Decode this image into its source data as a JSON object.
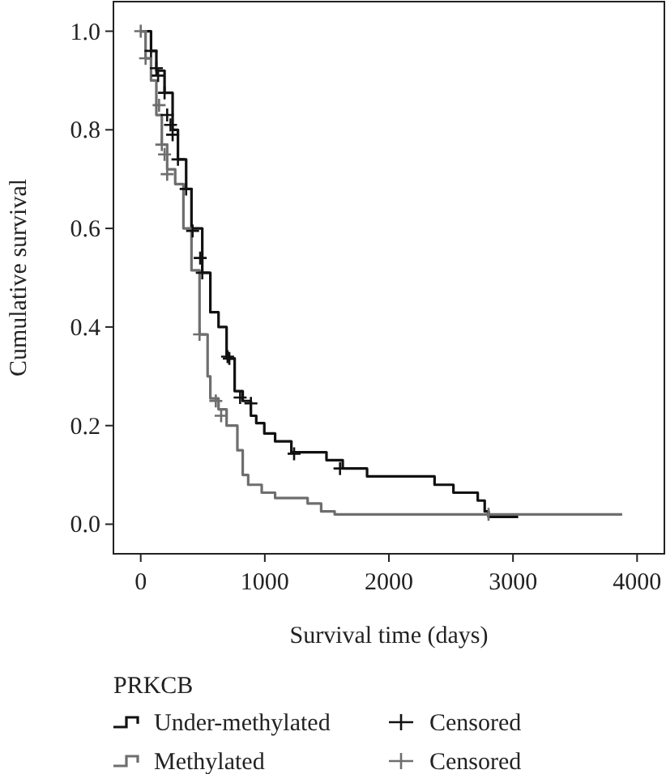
{
  "chart_data": {
    "type": "step",
    "xlabel": "Survival time (days)",
    "ylabel": "Cumulative survival",
    "legend_title": "PRKCB",
    "legend": "bottom",
    "xlim": [
      -220,
      4220
    ],
    "ylim": [
      -0.06,
      1.06
    ],
    "xticks": [
      0,
      1000,
      2000,
      3000,
      4000
    ],
    "yticks": [
      {
        "value": 0,
        "label": "0.0"
      },
      {
        "value": 0.2,
        "label": "0.2"
      },
      {
        "value": 0.4,
        "label": "0.4"
      },
      {
        "value": 0.6,
        "label": "0.6"
      },
      {
        "value": 0.8,
        "label": "0.8"
      },
      {
        "value": 1,
        "label": "1.0"
      }
    ],
    "grid": false,
    "series": [
      {
        "name": "Under-methylated",
        "color": "#111111",
        "marker": "none",
        "x": [
          0,
          83,
          126,
          192,
          257,
          300,
          366,
          409,
          496,
          561,
          627,
          692,
          714,
          757,
          822,
          888,
          931,
          996,
          1083,
          1214,
          1497,
          1628,
          1824,
          2368,
          2520,
          2716,
          2772,
          2803,
          3042
        ],
        "values": [
          1.0,
          0.96,
          0.92,
          0.875,
          0.8,
          0.74,
          0.68,
          0.6,
          0.51,
          0.43,
          0.4,
          0.34,
          0.336,
          0.27,
          0.25,
          0.22,
          0.205,
          0.184,
          0.168,
          0.146,
          0.13,
          0.113,
          0.097,
          0.08,
          0.064,
          0.048,
          0.026,
          0.015,
          0.015
        ]
      },
      {
        "name": "Methylated",
        "color": "#6e6e6e",
        "marker": "none",
        "x": [
          0,
          39,
          83,
          126,
          170,
          213,
          278,
          344,
          409,
          474,
          539,
          561,
          627,
          692,
          779,
          822,
          866,
          975,
          1083,
          1345,
          1454,
          1563,
          3880
        ],
        "values": [
          1.0,
          0.945,
          0.9,
          0.83,
          0.77,
          0.72,
          0.69,
          0.6,
          0.515,
          0.385,
          0.3,
          0.255,
          0.233,
          0.2,
          0.15,
          0.1,
          0.08,
          0.064,
          0.053,
          0.042,
          0.026,
          0.02,
          0.02
        ]
      },
      {
        "name": "Censored",
        "type": "scatter",
        "color": "#111111",
        "marker": "cross",
        "x": [
          83,
          126,
          140,
          192,
          213,
          240,
          257,
          300,
          366,
          418,
          479,
          496,
          700,
          714,
          801,
          888,
          1236,
          1606
        ],
        "values": [
          0.96,
          0.925,
          0.91,
          0.875,
          0.83,
          0.81,
          0.79,
          0.74,
          0.68,
          0.595,
          0.54,
          0.51,
          0.34,
          0.336,
          0.257,
          0.245,
          0.143,
          0.113
        ]
      },
      {
        "name": "Censored",
        "type": "scatter",
        "color": "#6e6e6e",
        "marker": "cross",
        "x": [
          0,
          39,
          148,
          170,
          192,
          213,
          474,
          605,
          648,
          2803
        ],
        "values": [
          1.0,
          0.945,
          0.85,
          0.77,
          0.75,
          0.71,
          0.385,
          0.25,
          0.22,
          0.02
        ]
      }
    ]
  }
}
